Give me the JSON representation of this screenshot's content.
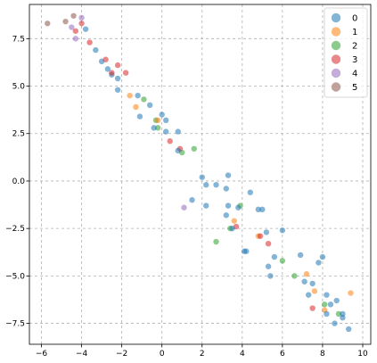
{
  "chart_data": {
    "type": "scatter",
    "title": "",
    "xlabel": "",
    "ylabel": "",
    "xlim": [
      -6.6,
      10.4
    ],
    "ylim": [
      -8.6,
      9.3
    ],
    "xticks": [
      -6,
      -4,
      -2,
      0,
      2,
      4,
      6,
      8,
      10
    ],
    "yticks": [
      -7.5,
      -5.0,
      -2.5,
      0.0,
      2.5,
      5.0,
      7.5
    ],
    "xtick_labels": [
      "−6",
      "−4",
      "−2",
      "0",
      "2",
      "4",
      "6",
      "8",
      "10"
    ],
    "ytick_labels": [
      "−7.5",
      "−5.0",
      "−2.5",
      "0.0",
      "2.5",
      "5.0",
      "7.5"
    ],
    "grid": true,
    "legend_position": "top-right",
    "series": [
      {
        "name": "0",
        "color": "#1f77b4",
        "points": [
          [
            -3.8,
            8.0
          ],
          [
            -3.3,
            6.9
          ],
          [
            -3.0,
            6.3
          ],
          [
            -2.7,
            5.9
          ],
          [
            -2.5,
            5.6
          ],
          [
            -2.2,
            5.4
          ],
          [
            -2.2,
            4.8
          ],
          [
            -1.2,
            4.5
          ],
          [
            -1.1,
            3.4
          ],
          [
            -0.6,
            4.0
          ],
          [
            -0.4,
            2.8
          ],
          [
            0.0,
            3.5
          ],
          [
            0.2,
            2.6
          ],
          [
            0.2,
            3.2
          ],
          [
            0.8,
            2.6
          ],
          [
            0.8,
            1.6
          ],
          [
            1.5,
            -1.0
          ],
          [
            2.0,
            0.2
          ],
          [
            2.2,
            -1.3
          ],
          [
            2.2,
            -0.2
          ],
          [
            2.7,
            -0.2
          ],
          [
            3.2,
            -0.4
          ],
          [
            3.2,
            -1.8
          ],
          [
            3.3,
            0.3
          ],
          [
            3.3,
            -1.3
          ],
          [
            3.5,
            -2.5
          ],
          [
            3.8,
            -1.4
          ],
          [
            4.1,
            -3.7
          ],
          [
            4.2,
            -3.7
          ],
          [
            4.4,
            -0.6
          ],
          [
            4.8,
            -1.5
          ],
          [
            5.0,
            -1.5
          ],
          [
            5.2,
            -2.7
          ],
          [
            5.3,
            -4.5
          ],
          [
            5.4,
            -5.0
          ],
          [
            5.6,
            -4.0
          ],
          [
            6.0,
            -2.6
          ],
          [
            6.9,
            -3.9
          ],
          [
            7.1,
            -5.3
          ],
          [
            7.3,
            -6.0
          ],
          [
            7.5,
            -5.4
          ],
          [
            7.8,
            -4.3
          ],
          [
            8.0,
            -4.0
          ],
          [
            8.2,
            -6.0
          ],
          [
            8.2,
            -7.0
          ],
          [
            8.4,
            -6.5
          ],
          [
            8.6,
            -7.5
          ],
          [
            8.7,
            -6.3
          ],
          [
            9.0,
            -7.0
          ],
          [
            9.0,
            -7.2
          ],
          [
            9.3,
            -7.8
          ]
        ]
      },
      {
        "name": "1",
        "color": "#ff7f0e",
        "points": [
          [
            -1.6,
            4.5
          ],
          [
            -1.3,
            3.9
          ],
          [
            -0.2,
            3.2
          ],
          [
            3.6,
            -2.1
          ],
          [
            4.8,
            -2.9
          ],
          [
            7.2,
            -4.9
          ],
          [
            7.6,
            -5.8
          ],
          [
            8.1,
            -6.8
          ],
          [
            9.4,
            -5.9
          ]
        ]
      },
      {
        "name": "2",
        "color": "#2ca02c",
        "points": [
          [
            -0.9,
            4.3
          ],
          [
            -0.3,
            3.2
          ],
          [
            -0.2,
            2.8
          ],
          [
            1.0,
            1.5
          ],
          [
            1.6,
            1.7
          ],
          [
            2.7,
            -3.2
          ],
          [
            3.4,
            -2.5
          ],
          [
            3.9,
            -1.3
          ],
          [
            6.0,
            -4.2
          ],
          [
            6.6,
            -5.0
          ],
          [
            8.1,
            -6.5
          ],
          [
            8.8,
            -7.0
          ]
        ]
      },
      {
        "name": "3",
        "color": "#d62728",
        "points": [
          [
            -4.3,
            7.9
          ],
          [
            -4.0,
            8.3
          ],
          [
            -3.6,
            7.3
          ],
          [
            -2.8,
            6.4
          ],
          [
            -2.5,
            5.7
          ],
          [
            -2.2,
            6.1
          ],
          [
            -1.8,
            5.7
          ],
          [
            0.4,
            2.1
          ],
          [
            0.9,
            1.7
          ],
          [
            3.7,
            -2.4
          ],
          [
            4.9,
            -2.9
          ],
          [
            5.3,
            -3.3
          ],
          [
            7.5,
            -6.7
          ]
        ]
      },
      {
        "name": "4",
        "color": "#9467bd",
        "points": [
          [
            -4.5,
            8.1
          ],
          [
            -4.3,
            7.5
          ],
          [
            -4.0,
            8.6
          ],
          [
            1.1,
            -1.4
          ]
        ]
      },
      {
        "name": "5",
        "color": "#8c564b",
        "points": [
          [
            -5.7,
            8.3
          ],
          [
            -4.8,
            8.4
          ],
          [
            -4.4,
            8.7
          ]
        ]
      }
    ]
  }
}
